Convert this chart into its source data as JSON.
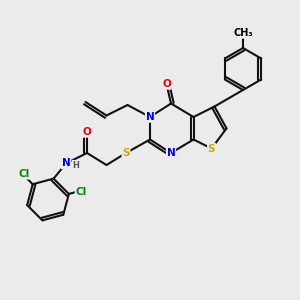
{
  "background_color": "#ebebeb",
  "atom_colors": {
    "N": "#0000ee",
    "O": "#ee0000",
    "S": "#ccaa00",
    "Cl": "#008800",
    "H": "#555555"
  },
  "bond_color": "#111111",
  "bond_lw": 1.5
}
